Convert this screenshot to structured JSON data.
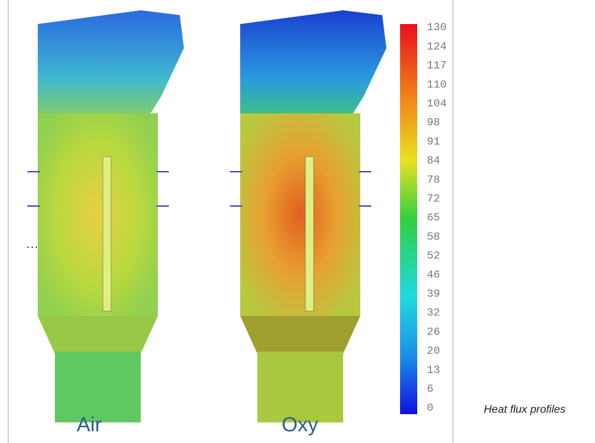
{
  "figure": {
    "panels": [
      {
        "label": "Air"
      },
      {
        "label": "Oxy"
      }
    ],
    "colorbar": {
      "ticks": [
        "130",
        "124",
        "117",
        "110",
        "104",
        "98",
        "91",
        "84",
        "78",
        "72",
        "65",
        "58",
        "52",
        "46",
        "39",
        "32",
        "26",
        "20",
        "13",
        "6",
        "0"
      ]
    },
    "caption": "Heat flux profiles"
  }
}
